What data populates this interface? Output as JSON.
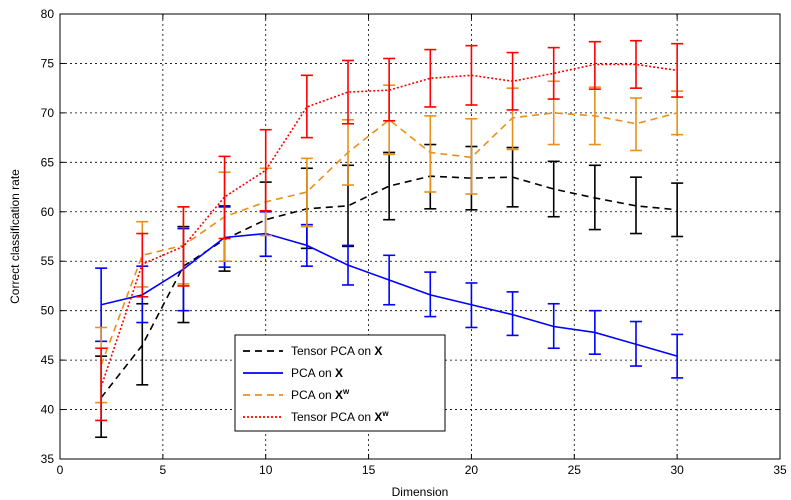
{
  "chart_data": {
    "type": "line",
    "title": "",
    "xlabel": "Dimension",
    "ylabel": "Correct classification rate",
    "xlim": [
      0,
      35
    ],
    "ylim": [
      35,
      80
    ],
    "xticks": [
      0,
      5,
      10,
      15,
      20,
      25,
      30,
      35
    ],
    "yticks": [
      35,
      40,
      45,
      50,
      55,
      60,
      65,
      70,
      75,
      80
    ],
    "grid": true,
    "legend_placement": "lower-center",
    "x": [
      2,
      4,
      6,
      8,
      10,
      12,
      14,
      16,
      18,
      20,
      22,
      24,
      26,
      28,
      30
    ],
    "series": [
      {
        "name": "Tensor PCA on X",
        "legend_main": "Tensor PCA on ",
        "legend_var": "X",
        "legend_sup": "",
        "color": "#000000",
        "dash": "7,5",
        "values": [
          41.2,
          46.5,
          54.5,
          57.2,
          59.2,
          60.3,
          60.6,
          62.6,
          63.6,
          63.4,
          63.5,
          62.3,
          61.4,
          60.6,
          60.2
        ],
        "err_low": [
          37.2,
          42.5,
          48.8,
          54.0,
          55.5,
          56.3,
          56.5,
          59.2,
          60.3,
          60.2,
          60.5,
          59.5,
          58.2,
          57.8,
          57.5
        ],
        "err_high": [
          45.4,
          50.7,
          58.5,
          60.5,
          63.0,
          64.4,
          64.7,
          66.0,
          66.8,
          66.6,
          66.5,
          65.1,
          64.7,
          63.5,
          62.9
        ]
      },
      {
        "name": "PCA on X",
        "legend_main": "PCA on ",
        "legend_var": "X",
        "legend_sup": "",
        "color": "#0000ff",
        "dash": "",
        "values": [
          50.6,
          51.6,
          54.2,
          57.4,
          57.8,
          56.6,
          54.6,
          53.1,
          51.6,
          50.6,
          49.6,
          48.4,
          47.8,
          46.6,
          45.4
        ],
        "err_low": [
          46.9,
          48.8,
          50.0,
          54.4,
          55.5,
          54.5,
          52.6,
          50.6,
          49.4,
          48.3,
          47.5,
          46.2,
          45.6,
          44.4,
          43.2
        ],
        "err_high": [
          54.3,
          54.5,
          58.3,
          60.6,
          60.0,
          58.7,
          56.6,
          55.6,
          53.9,
          52.8,
          51.9,
          50.7,
          50.0,
          48.9,
          47.6
        ]
      },
      {
        "name": "PCA on X^w",
        "legend_main": "PCA on ",
        "legend_var": "X",
        "legend_sup": "w",
        "color": "#e8901c",
        "dash": "7,5",
        "values": [
          44.5,
          55.6,
          56.6,
          59.5,
          61.0,
          62.0,
          66.0,
          69.3,
          66.0,
          65.5,
          69.5,
          70.0,
          69.7,
          68.9,
          70.0
        ],
        "err_low": [
          40.7,
          52.4,
          52.7,
          55.0,
          57.6,
          58.5,
          62.7,
          65.8,
          62.0,
          61.8,
          66.3,
          66.8,
          66.8,
          66.2,
          67.8
        ],
        "err_high": [
          48.3,
          59.0,
          60.5,
          64.0,
          64.4,
          65.4,
          69.3,
          72.8,
          69.7,
          69.4,
          72.5,
          73.2,
          72.6,
          71.5,
          72.2
        ]
      },
      {
        "name": "Tensor PCA on X^w",
        "legend_main": "Tensor PCA on ",
        "legend_var": "X",
        "legend_sup": "w",
        "color": "#ff0000",
        "dash": "2,2",
        "values": [
          42.3,
          54.7,
          56.5,
          61.5,
          64.2,
          70.6,
          72.1,
          72.3,
          73.5,
          73.8,
          73.2,
          74.0,
          74.9,
          74.9,
          74.3
        ],
        "err_low": [
          38.9,
          51.4,
          52.5,
          57.3,
          60.1,
          67.5,
          68.9,
          69.2,
          70.6,
          70.8,
          70.3,
          71.4,
          72.4,
          72.5,
          71.6
        ],
        "err_high": [
          46.2,
          57.8,
          60.5,
          65.6,
          68.3,
          73.8,
          75.3,
          75.5,
          76.4,
          76.8,
          76.1,
          76.6,
          77.2,
          77.3,
          77.0
        ]
      }
    ]
  }
}
